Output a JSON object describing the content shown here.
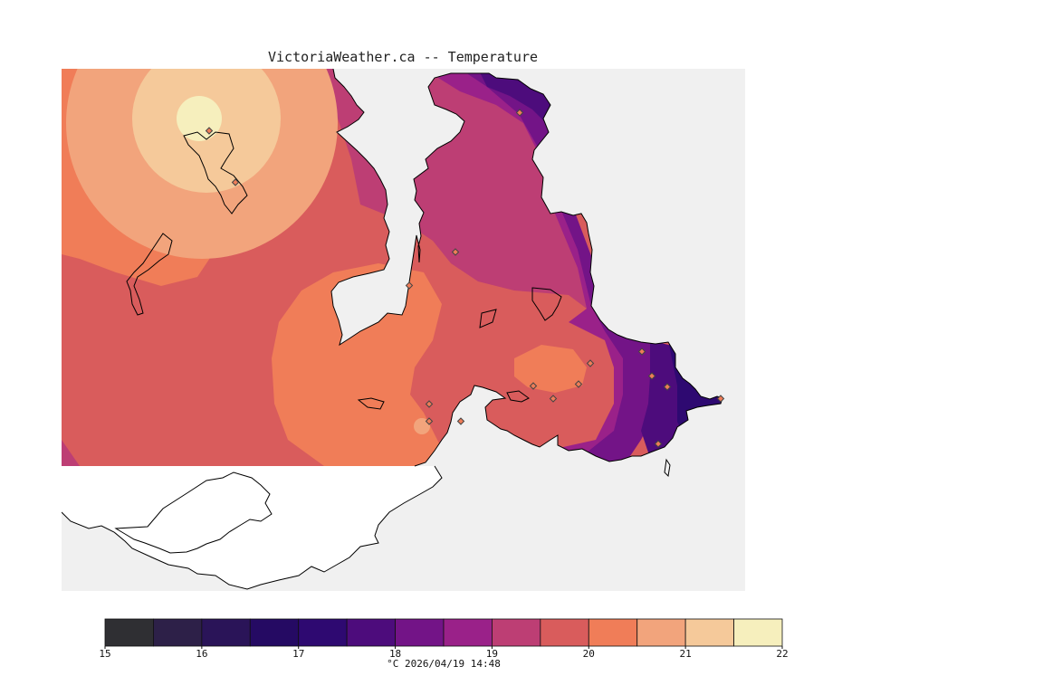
{
  "title": "VictoriaWeather.ca -- Temperature",
  "caption": "°C  2026/04/19 14:48",
  "colorbar": {
    "tick_labels": [
      "15",
      "16",
      "17",
      "18",
      "19",
      "20",
      "21",
      "22"
    ],
    "bins": [
      {
        "from": 15.0,
        "to": 15.5,
        "color": "#2f2f33"
      },
      {
        "from": 15.5,
        "to": 16.0,
        "color": "#2d2048"
      },
      {
        "from": 16.0,
        "to": 16.5,
        "color": "#2a1458"
      },
      {
        "from": 16.5,
        "to": 17.0,
        "color": "#250a63"
      },
      {
        "from": 17.0,
        "to": 17.5,
        "color": "#2e0971"
      },
      {
        "from": 17.5,
        "to": 18.0,
        "color": "#4d0c7c"
      },
      {
        "from": 18.0,
        "to": 18.5,
        "color": "#731487"
      },
      {
        "from": 18.5,
        "to": 19.0,
        "color": "#9a2189"
      },
      {
        "from": 19.0,
        "to": 19.5,
        "color": "#bd3e74"
      },
      {
        "from": 19.5,
        "to": 20.0,
        "color": "#d95c5c"
      },
      {
        "from": 20.0,
        "to": 20.5,
        "color": "#f07d58"
      },
      {
        "from": 20.5,
        "to": 21.0,
        "color": "#f2a47c"
      },
      {
        "from": 21.0,
        "to": 21.5,
        "color": "#f5c99a"
      },
      {
        "from": 21.5,
        "to": 22.0,
        "color": "#f6efbd"
      }
    ]
  },
  "colors": {
    "background": "#ffffff",
    "water": "#f0f0f0",
    "land_outside": "#ffffff",
    "coastline": "#000000",
    "station_marker": "#d07060"
  }
}
